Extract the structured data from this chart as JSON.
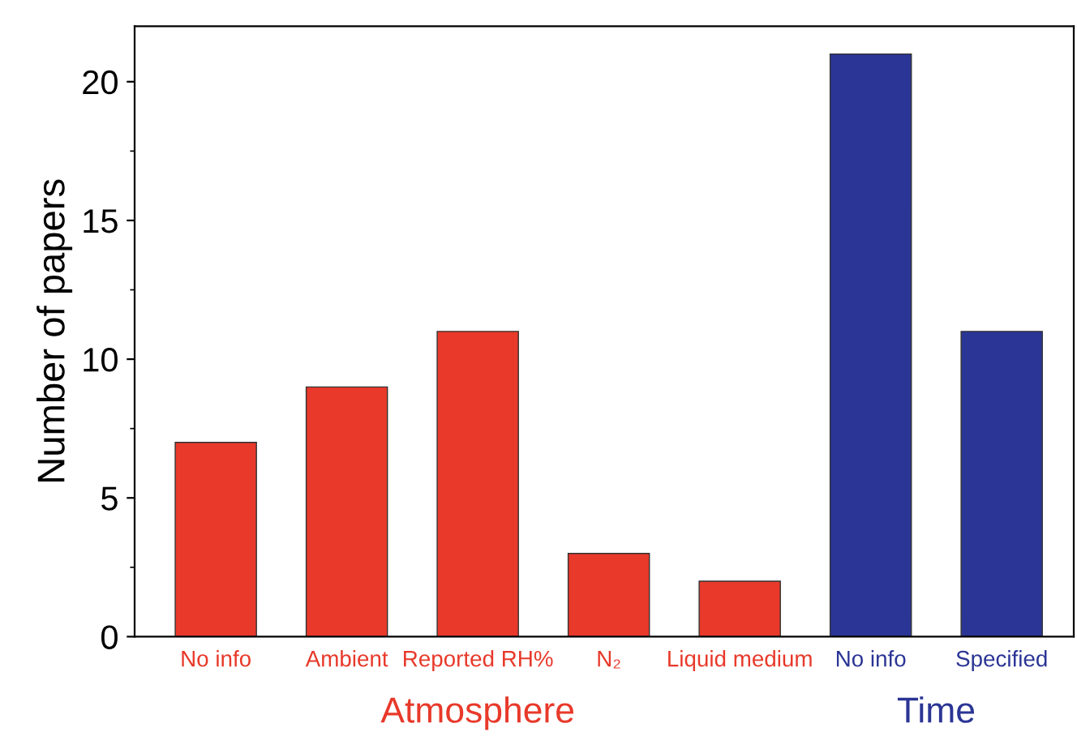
{
  "chart_data": {
    "type": "bar",
    "categories": [
      "No info",
      "Ambient",
      "Reported RH%",
      "N₂",
      "Liquid medium",
      "No info",
      "Specified"
    ],
    "values": [
      7,
      9,
      11,
      3,
      2,
      21,
      11
    ],
    "colors": [
      "#e8392a",
      "#e8392a",
      "#e8392a",
      "#e8392a",
      "#e8392a",
      "#2b3595",
      "#2b3595"
    ],
    "ylabel": "Number of papers",
    "ylim": [
      0,
      22
    ],
    "yticks": [
      0,
      5,
      10,
      15,
      20
    ],
    "annotations": [
      "Atmosphere",
      "Time"
    ],
    "grid": false,
    "legend": false
  }
}
